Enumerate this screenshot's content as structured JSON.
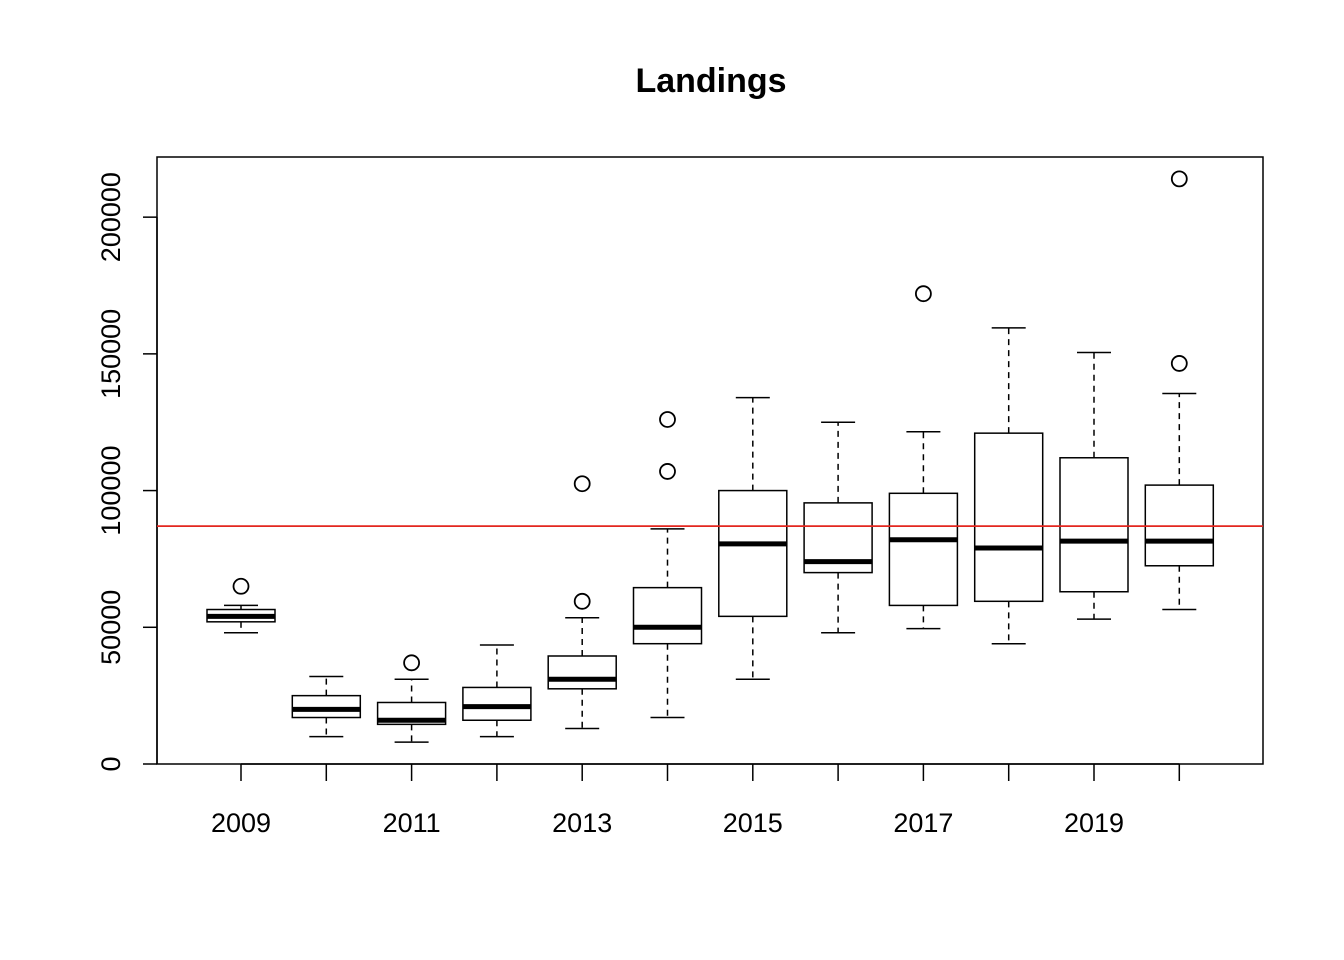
{
  "chart_data": {
    "type": "boxplot",
    "title": "Landings",
    "xlabel": "",
    "ylabel": "",
    "categories": [
      "2009",
      "2010",
      "2011",
      "2012",
      "2013",
      "2014",
      "2015",
      "2016",
      "2017",
      "2018",
      "2019",
      "2020"
    ],
    "x_tick_labels": [
      "2009",
      "2011",
      "2013",
      "2015",
      "2017",
      "2019"
    ],
    "y_ticks": [
      0,
      50000,
      100000,
      150000,
      200000
    ],
    "y_tick_labels": [
      "0",
      "50000",
      "100000",
      "150000",
      "200000"
    ],
    "ylim": [
      0,
      222000
    ],
    "grid": false,
    "boxes": [
      {
        "category": "2009",
        "whisker_low": 48000,
        "q1": 52000,
        "median": 54000,
        "q3": 56500,
        "whisker_high": 58000,
        "outliers": [
          65000
        ]
      },
      {
        "category": "2010",
        "whisker_low": 10000,
        "q1": 17000,
        "median": 20000,
        "q3": 25000,
        "whisker_high": 32000,
        "outliers": []
      },
      {
        "category": "2011",
        "whisker_low": 8000,
        "q1": 14500,
        "median": 16000,
        "q3": 22500,
        "whisker_high": 31000,
        "outliers": [
          37000
        ]
      },
      {
        "category": "2012",
        "whisker_low": 10000,
        "q1": 16000,
        "median": 21000,
        "q3": 28000,
        "whisker_high": 43500,
        "outliers": []
      },
      {
        "category": "2013",
        "whisker_low": 13000,
        "q1": 27500,
        "median": 31000,
        "q3": 39500,
        "whisker_high": 53500,
        "outliers": [
          59500,
          102500
        ]
      },
      {
        "category": "2014",
        "whisker_low": 17000,
        "q1": 44000,
        "median": 50000,
        "q3": 64500,
        "whisker_high": 86000,
        "outliers": [
          107000,
          126000
        ]
      },
      {
        "category": "2015",
        "whisker_low": 31000,
        "q1": 54000,
        "median": 80500,
        "q3": 100000,
        "whisker_high": 134000,
        "outliers": []
      },
      {
        "category": "2016",
        "whisker_low": 48000,
        "q1": 70000,
        "median": 74000,
        "q3": 95500,
        "whisker_high": 125000,
        "outliers": []
      },
      {
        "category": "2017",
        "whisker_low": 49500,
        "q1": 58000,
        "median": 82000,
        "q3": 99000,
        "whisker_high": 121500,
        "outliers": [
          172000
        ]
      },
      {
        "category": "2018",
        "whisker_low": 44000,
        "q1": 59500,
        "median": 79000,
        "q3": 121000,
        "whisker_high": 159500,
        "outliers": []
      },
      {
        "category": "2019",
        "whisker_low": 53000,
        "q1": 63000,
        "median": 81500,
        "q3": 112000,
        "whisker_high": 150500,
        "outliers": []
      },
      {
        "category": "2020",
        "whisker_low": 56500,
        "q1": 72500,
        "median": 81500,
        "q3": 102000,
        "whisker_high": 135500,
        "outliers": [
          146500,
          214000
        ]
      }
    ],
    "reference_line": {
      "y": 87000,
      "color": "#e3261f"
    }
  }
}
